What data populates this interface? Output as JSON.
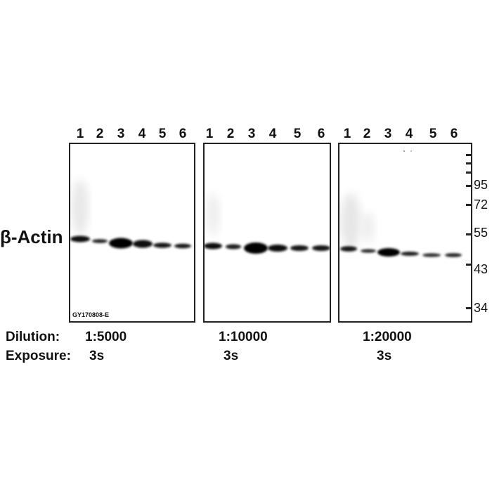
{
  "target_label": "β-Actin",
  "lanes": [
    "1",
    "2",
    "3",
    "4",
    "5",
    "6"
  ],
  "catalog_id": "GY170808-E",
  "markers": [
    "95",
    "72",
    "55",
    "43",
    "34"
  ],
  "rows": {
    "dilution_label": "Dilution:",
    "exposure_label": "Exposure:"
  },
  "panels": [
    {
      "dilution": "1:5000",
      "exposure": "3s"
    },
    {
      "dilution": "1:10000",
      "exposure": "3s"
    },
    {
      "dilution": "1:20000",
      "exposure": "3s"
    }
  ]
}
